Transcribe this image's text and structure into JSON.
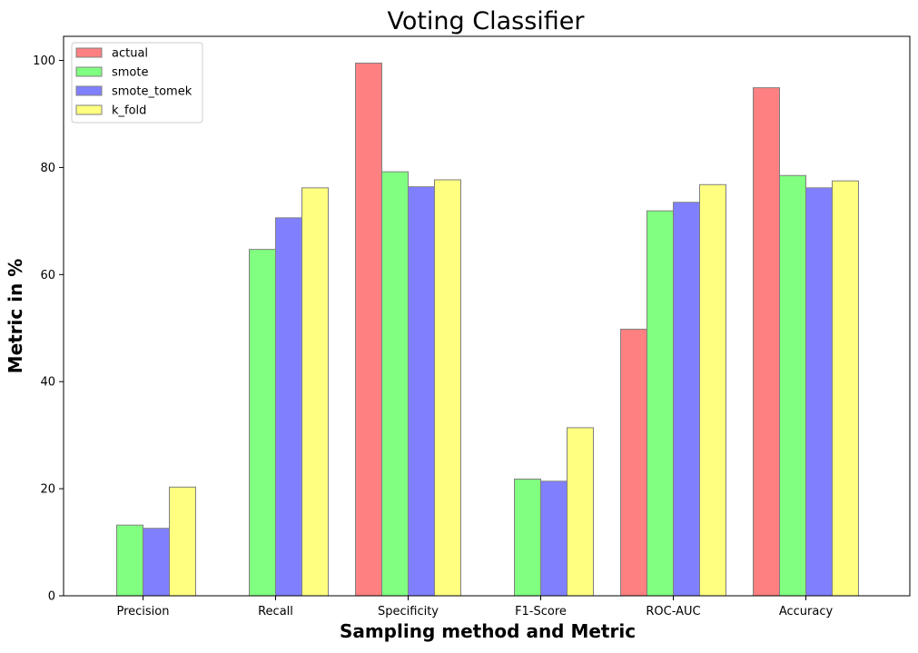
{
  "chart_data": {
    "type": "bar",
    "title": "Voting Classifier",
    "xlabel": "Sampling method and Metric",
    "ylabel": "Metric in %",
    "categories": [
      "Precision",
      "Recall",
      "Specificity",
      "F1-Score",
      "ROC-AUC",
      "Accuracy"
    ],
    "series": [
      {
        "name": "actual",
        "color": "#ff8080",
        "values": [
          0,
          0,
          99.5,
          0,
          49.8,
          94.9
        ]
      },
      {
        "name": "smote",
        "color": "#80ff80",
        "values": [
          13.2,
          64.7,
          79.2,
          21.8,
          71.9,
          78.5
        ]
      },
      {
        "name": "smote_tomek",
        "color": "#8080ff",
        "values": [
          12.6,
          70.6,
          76.4,
          21.4,
          73.5,
          76.2
        ]
      },
      {
        "name": "k_fold",
        "color": "#ffff80",
        "values": [
          20.3,
          76.2,
          77.7,
          31.4,
          76.8,
          77.5
        ]
      }
    ],
    "bar_edge_color": "#808080",
    "ylim": [
      0,
      104.5
    ],
    "yticks": [
      0,
      20,
      40,
      60,
      80,
      100
    ],
    "grid": false,
    "legend_position": "upper left"
  }
}
